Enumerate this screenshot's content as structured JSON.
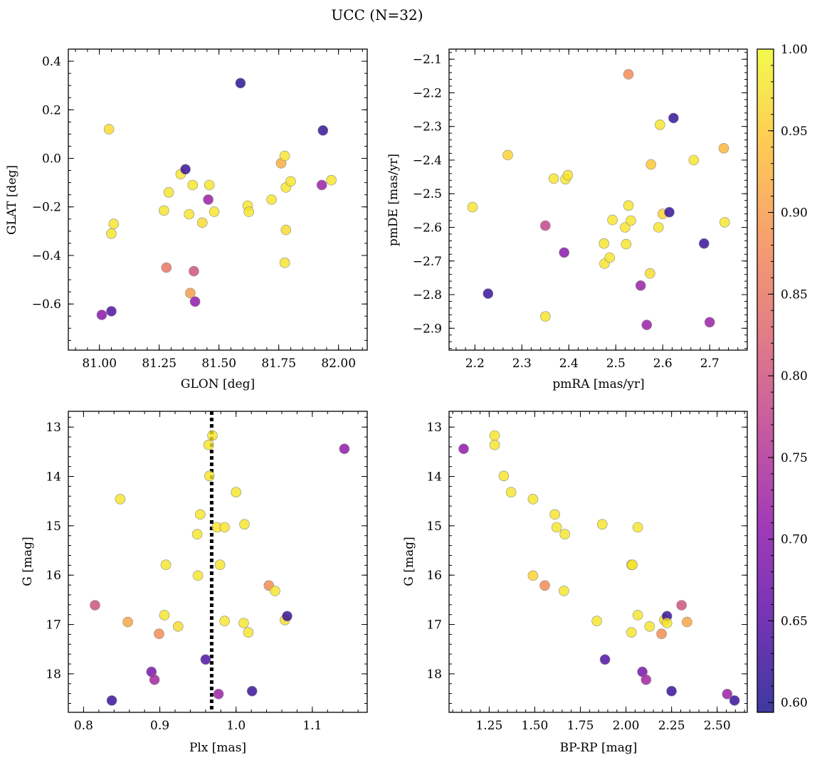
{
  "title": "UCC (N=32)",
  "colormap": [
    "#0d0887",
    "#5302a3",
    "#8b0aa5",
    "#b83289",
    "#db5c68",
    "#f48849",
    "#febd2a",
    "#f0f921"
  ],
  "colorbar": {
    "min": 0.594,
    "max": 1.0,
    "ticks": [
      "0.60",
      "0.65",
      "0.70",
      "0.75",
      "0.80",
      "0.85",
      "0.90",
      "0.95",
      "1.00"
    ],
    "tick_values": [
      0.6,
      0.65,
      0.7,
      0.75,
      0.8,
      0.85,
      0.9,
      0.95,
      1.0
    ]
  },
  "chart_data": [
    {
      "type": "scatter",
      "xlabel": "GLON [deg]",
      "ylabel": "GLAT [deg]",
      "xlim": [
        80.87,
        82.12
      ],
      "ylim": [
        -0.79,
        0.45
      ],
      "y_inverted": false,
      "xticks": [
        81.0,
        81.25,
        81.5,
        81.75,
        82.0
      ],
      "xtick_labels": [
        "81.00",
        "81.25",
        "81.50",
        "81.75",
        "82.00"
      ],
      "yticks": [
        -0.6,
        -0.4,
        -0.2,
        0.0,
        0.2,
        0.4
      ],
      "ytick_labels": [
        "−0.6",
        "−0.4",
        "−0.2",
        "0.0",
        "0.2",
        "0.4"
      ],
      "x_minor": 0.05,
      "y_minor": 0.05,
      "points": [
        {
          "x": 81.04,
          "y": 0.12,
          "c": 0.97
        },
        {
          "x": 81.05,
          "y": -0.31,
          "c": 0.98
        },
        {
          "x": 81.06,
          "y": -0.27,
          "c": 0.98
        },
        {
          "x": 81.01,
          "y": -0.645,
          "c": 0.7
        },
        {
          "x": 81.05,
          "y": -0.63,
          "c": 0.64
        },
        {
          "x": 81.27,
          "y": -0.215,
          "c": 0.98
        },
        {
          "x": 81.29,
          "y": -0.14,
          "c": 0.98
        },
        {
          "x": 81.28,
          "y": -0.45,
          "c": 0.85
        },
        {
          "x": 81.34,
          "y": -0.065,
          "c": 0.98
        },
        {
          "x": 81.36,
          "y": -0.045,
          "c": 0.62
        },
        {
          "x": 81.375,
          "y": -0.23,
          "c": 0.98
        },
        {
          "x": 81.39,
          "y": -0.11,
          "c": 0.98
        },
        {
          "x": 81.38,
          "y": -0.555,
          "c": 0.9
        },
        {
          "x": 81.395,
          "y": -0.465,
          "c": 0.8
        },
        {
          "x": 81.4,
          "y": -0.59,
          "c": 0.71
        },
        {
          "x": 81.43,
          "y": -0.265,
          "c": 0.97
        },
        {
          "x": 81.455,
          "y": -0.17,
          "c": 0.72
        },
        {
          "x": 81.46,
          "y": -0.11,
          "c": 0.98
        },
        {
          "x": 81.48,
          "y": -0.22,
          "c": 0.98
        },
        {
          "x": 81.59,
          "y": 0.31,
          "c": 0.61
        },
        {
          "x": 81.62,
          "y": -0.195,
          "c": 0.98
        },
        {
          "x": 81.625,
          "y": -0.22,
          "c": 0.98
        },
        {
          "x": 81.72,
          "y": -0.17,
          "c": 0.98
        },
        {
          "x": 81.76,
          "y": -0.02,
          "c": 0.92
        },
        {
          "x": 81.775,
          "y": 0.01,
          "c": 0.98
        },
        {
          "x": 81.78,
          "y": -0.12,
          "c": 0.98
        },
        {
          "x": 81.78,
          "y": -0.295,
          "c": 0.97
        },
        {
          "x": 81.775,
          "y": -0.43,
          "c": 0.98
        },
        {
          "x": 81.8,
          "y": -0.095,
          "c": 0.98
        },
        {
          "x": 81.93,
          "y": -0.11,
          "c": 0.72
        },
        {
          "x": 81.935,
          "y": 0.115,
          "c": 0.62
        },
        {
          "x": 81.97,
          "y": -0.09,
          "c": 0.98
        }
      ]
    },
    {
      "type": "scatter",
      "xlabel": "pmRA [mas/yr]",
      "ylabel": "pmDE [mas/yr]",
      "xlim": [
        2.145,
        2.78
      ],
      "ylim": [
        -2.965,
        -2.07
      ],
      "y_inverted": false,
      "xticks": [
        2.2,
        2.3,
        2.4,
        2.5,
        2.6,
        2.7
      ],
      "xtick_labels": [
        "2.2",
        "2.3",
        "2.4",
        "2.5",
        "2.6",
        "2.7"
      ],
      "yticks": [
        -2.9,
        -2.8,
        -2.7,
        -2.6,
        -2.5,
        -2.4,
        -2.3,
        -2.2,
        -2.1
      ],
      "ytick_labels": [
        "−2.9",
        "−2.8",
        "−2.7",
        "−2.6",
        "−2.5",
        "−2.4",
        "−2.3",
        "−2.2",
        "−2.1"
      ],
      "x_minor": 0.02,
      "y_minor": 0.02,
      "points": [
        {
          "x": 2.195,
          "y": -2.54,
          "c": 0.98
        },
        {
          "x": 2.228,
          "y": -2.797,
          "c": 0.62
        },
        {
          "x": 2.27,
          "y": -2.385,
          "c": 0.96
        },
        {
          "x": 2.35,
          "y": -2.595,
          "c": 0.78
        },
        {
          "x": 2.35,
          "y": -2.865,
          "c": 0.98
        },
        {
          "x": 2.368,
          "y": -2.455,
          "c": 0.98
        },
        {
          "x": 2.39,
          "y": -2.675,
          "c": 0.7
        },
        {
          "x": 2.393,
          "y": -2.457,
          "c": 0.98
        },
        {
          "x": 2.398,
          "y": -2.445,
          "c": 0.98
        },
        {
          "x": 2.475,
          "y": -2.648,
          "c": 0.98
        },
        {
          "x": 2.476,
          "y": -2.708,
          "c": 0.98
        },
        {
          "x": 2.487,
          "y": -2.69,
          "c": 0.98
        },
        {
          "x": 2.493,
          "y": -2.578,
          "c": 0.98
        },
        {
          "x": 2.52,
          "y": -2.6,
          "c": 0.98
        },
        {
          "x": 2.522,
          "y": -2.65,
          "c": 0.98
        },
        {
          "x": 2.527,
          "y": -2.535,
          "c": 0.98
        },
        {
          "x": 2.527,
          "y": -2.145,
          "c": 0.88
        },
        {
          "x": 2.532,
          "y": -2.58,
          "c": 0.98
        },
        {
          "x": 2.553,
          "y": -2.773,
          "c": 0.72
        },
        {
          "x": 2.566,
          "y": -2.89,
          "c": 0.72
        },
        {
          "x": 2.573,
          "y": -2.737,
          "c": 0.97
        },
        {
          "x": 2.575,
          "y": -2.413,
          "c": 0.95
        },
        {
          "x": 2.591,
          "y": -2.6,
          "c": 0.98
        },
        {
          "x": 2.594,
          "y": -2.295,
          "c": 0.98
        },
        {
          "x": 2.6,
          "y": -2.56,
          "c": 0.96
        },
        {
          "x": 2.614,
          "y": -2.555,
          "c": 0.62
        },
        {
          "x": 2.623,
          "y": -2.275,
          "c": 0.62
        },
        {
          "x": 2.666,
          "y": -2.4,
          "c": 0.98
        },
        {
          "x": 2.688,
          "y": -2.648,
          "c": 0.62
        },
        {
          "x": 2.7,
          "y": -2.882,
          "c": 0.72
        },
        {
          "x": 2.73,
          "y": -2.365,
          "c": 0.93
        },
        {
          "x": 2.732,
          "y": -2.585,
          "c": 0.98
        }
      ]
    },
    {
      "type": "scatter",
      "xlabel": "Plx [mas]",
      "ylabel": "G [mag]",
      "xlim": [
        0.78,
        1.172
      ],
      "ylim": [
        12.68,
        18.78
      ],
      "y_inverted": true,
      "xticks": [
        0.8,
        0.9,
        1.0,
        1.1
      ],
      "xtick_labels": [
        "0.8",
        "0.9",
        "1.0",
        "1.1"
      ],
      "yticks": [
        13,
        14,
        15,
        16,
        17,
        18
      ],
      "ytick_labels": [
        "13",
        "14",
        "15",
        "16",
        "17",
        "18"
      ],
      "x_minor": 0.02,
      "y_minor": 0.2,
      "vline": {
        "x": 0.968,
        "style": "dotted"
      },
      "points": [
        {
          "x": 0.815,
          "y": 16.61,
          "c": 0.8
        },
        {
          "x": 0.837,
          "y": 18.54,
          "c": 0.62
        },
        {
          "x": 0.848,
          "y": 14.46,
          "c": 0.98
        },
        {
          "x": 0.858,
          "y": 16.95,
          "c": 0.91
        },
        {
          "x": 0.889,
          "y": 17.96,
          "c": 0.68
        },
        {
          "x": 0.893,
          "y": 18.12,
          "c": 0.73
        },
        {
          "x": 0.899,
          "y": 17.19,
          "c": 0.88
        },
        {
          "x": 0.906,
          "y": 16.81,
          "c": 0.98
        },
        {
          "x": 0.908,
          "y": 15.79,
          "c": 0.98
        },
        {
          "x": 0.924,
          "y": 17.04,
          "c": 0.97
        },
        {
          "x": 0.949,
          "y": 15.17,
          "c": 0.98
        },
        {
          "x": 0.95,
          "y": 16.01,
          "c": 0.98
        },
        {
          "x": 0.953,
          "y": 14.77,
          "c": 0.98
        },
        {
          "x": 0.96,
          "y": 17.71,
          "c": 0.64
        },
        {
          "x": 0.964,
          "y": 13.36,
          "c": 0.98
        },
        {
          "x": 0.965,
          "y": 13.99,
          "c": 0.98
        },
        {
          "x": 0.969,
          "y": 13.17,
          "c": 0.98
        },
        {
          "x": 0.975,
          "y": 15.03,
          "c": 0.98
        },
        {
          "x": 0.977,
          "y": 18.41,
          "c": 0.72
        },
        {
          "x": 0.979,
          "y": 15.79,
          "c": 0.98
        },
        {
          "x": 0.985,
          "y": 15.03,
          "c": 0.98
        },
        {
          "x": 0.985,
          "y": 16.93,
          "c": 0.98
        },
        {
          "x": 1.0,
          "y": 14.32,
          "c": 0.98
        },
        {
          "x": 1.01,
          "y": 16.97,
          "c": 0.98
        },
        {
          "x": 1.011,
          "y": 14.97,
          "c": 0.98
        },
        {
          "x": 1.016,
          "y": 17.16,
          "c": 0.98
        },
        {
          "x": 1.021,
          "y": 18.35,
          "c": 0.62
        },
        {
          "x": 1.043,
          "y": 16.21,
          "c": 0.88
        },
        {
          "x": 1.051,
          "y": 16.32,
          "c": 0.98
        },
        {
          "x": 1.064,
          "y": 16.91,
          "c": 0.97
        },
        {
          "x": 1.067,
          "y": 16.83,
          "c": 0.62
        },
        {
          "x": 1.142,
          "y": 13.44,
          "c": 0.71
        }
      ]
    },
    {
      "type": "scatter",
      "xlabel": "BP-RP [mag]",
      "ylabel": "G [mag]",
      "xlim": [
        1.03,
        2.665
      ],
      "ylim": [
        12.68,
        18.78
      ],
      "y_inverted": true,
      "xticks": [
        1.25,
        1.5,
        1.75,
        2.0,
        2.25,
        2.5
      ],
      "xtick_labels": [
        "1.25",
        "1.50",
        "1.75",
        "2.00",
        "2.25",
        "2.50"
      ],
      "yticks": [
        13,
        14,
        15,
        16,
        17,
        18
      ],
      "ytick_labels": [
        "13",
        "14",
        "15",
        "16",
        "17",
        "18"
      ],
      "x_minor": 0.05,
      "y_minor": 0.2,
      "points": [
        {
          "x": 1.11,
          "y": 13.44,
          "c": 0.71
        },
        {
          "x": 1.28,
          "y": 13.17,
          "c": 0.98
        },
        {
          "x": 1.28,
          "y": 13.36,
          "c": 0.98
        },
        {
          "x": 1.33,
          "y": 13.99,
          "c": 0.98
        },
        {
          "x": 1.37,
          "y": 14.32,
          "c": 0.98
        },
        {
          "x": 1.49,
          "y": 14.46,
          "c": 0.98
        },
        {
          "x": 1.49,
          "y": 16.01,
          "c": 0.96
        },
        {
          "x": 1.555,
          "y": 16.21,
          "c": 0.88
        },
        {
          "x": 1.61,
          "y": 14.77,
          "c": 0.98
        },
        {
          "x": 1.62,
          "y": 15.03,
          "c": 0.98
        },
        {
          "x": 1.665,
          "y": 15.17,
          "c": 0.98
        },
        {
          "x": 1.66,
          "y": 16.32,
          "c": 0.98
        },
        {
          "x": 1.84,
          "y": 16.93,
          "c": 0.98
        },
        {
          "x": 1.87,
          "y": 14.97,
          "c": 0.98
        },
        {
          "x": 1.885,
          "y": 17.71,
          "c": 0.64
        },
        {
          "x": 2.03,
          "y": 15.79,
          "c": 0.98
        },
        {
          "x": 2.035,
          "y": 15.79,
          "c": 0.98
        },
        {
          "x": 2.03,
          "y": 17.16,
          "c": 0.98
        },
        {
          "x": 2.065,
          "y": 15.03,
          "c": 0.98
        },
        {
          "x": 2.065,
          "y": 16.81,
          "c": 0.98
        },
        {
          "x": 2.09,
          "y": 17.96,
          "c": 0.68
        },
        {
          "x": 2.11,
          "y": 18.12,
          "c": 0.73
        },
        {
          "x": 2.13,
          "y": 17.04,
          "c": 0.98
        },
        {
          "x": 2.195,
          "y": 17.19,
          "c": 0.88
        },
        {
          "x": 2.21,
          "y": 16.91,
          "c": 0.97
        },
        {
          "x": 2.225,
          "y": 16.83,
          "c": 0.62
        },
        {
          "x": 2.225,
          "y": 16.97,
          "c": 0.98
        },
        {
          "x": 2.25,
          "y": 18.35,
          "c": 0.62
        },
        {
          "x": 2.305,
          "y": 16.61,
          "c": 0.8
        },
        {
          "x": 2.335,
          "y": 16.95,
          "c": 0.91
        },
        {
          "x": 2.555,
          "y": 18.41,
          "c": 0.72
        },
        {
          "x": 2.595,
          "y": 18.54,
          "c": 0.62
        }
      ]
    }
  ]
}
